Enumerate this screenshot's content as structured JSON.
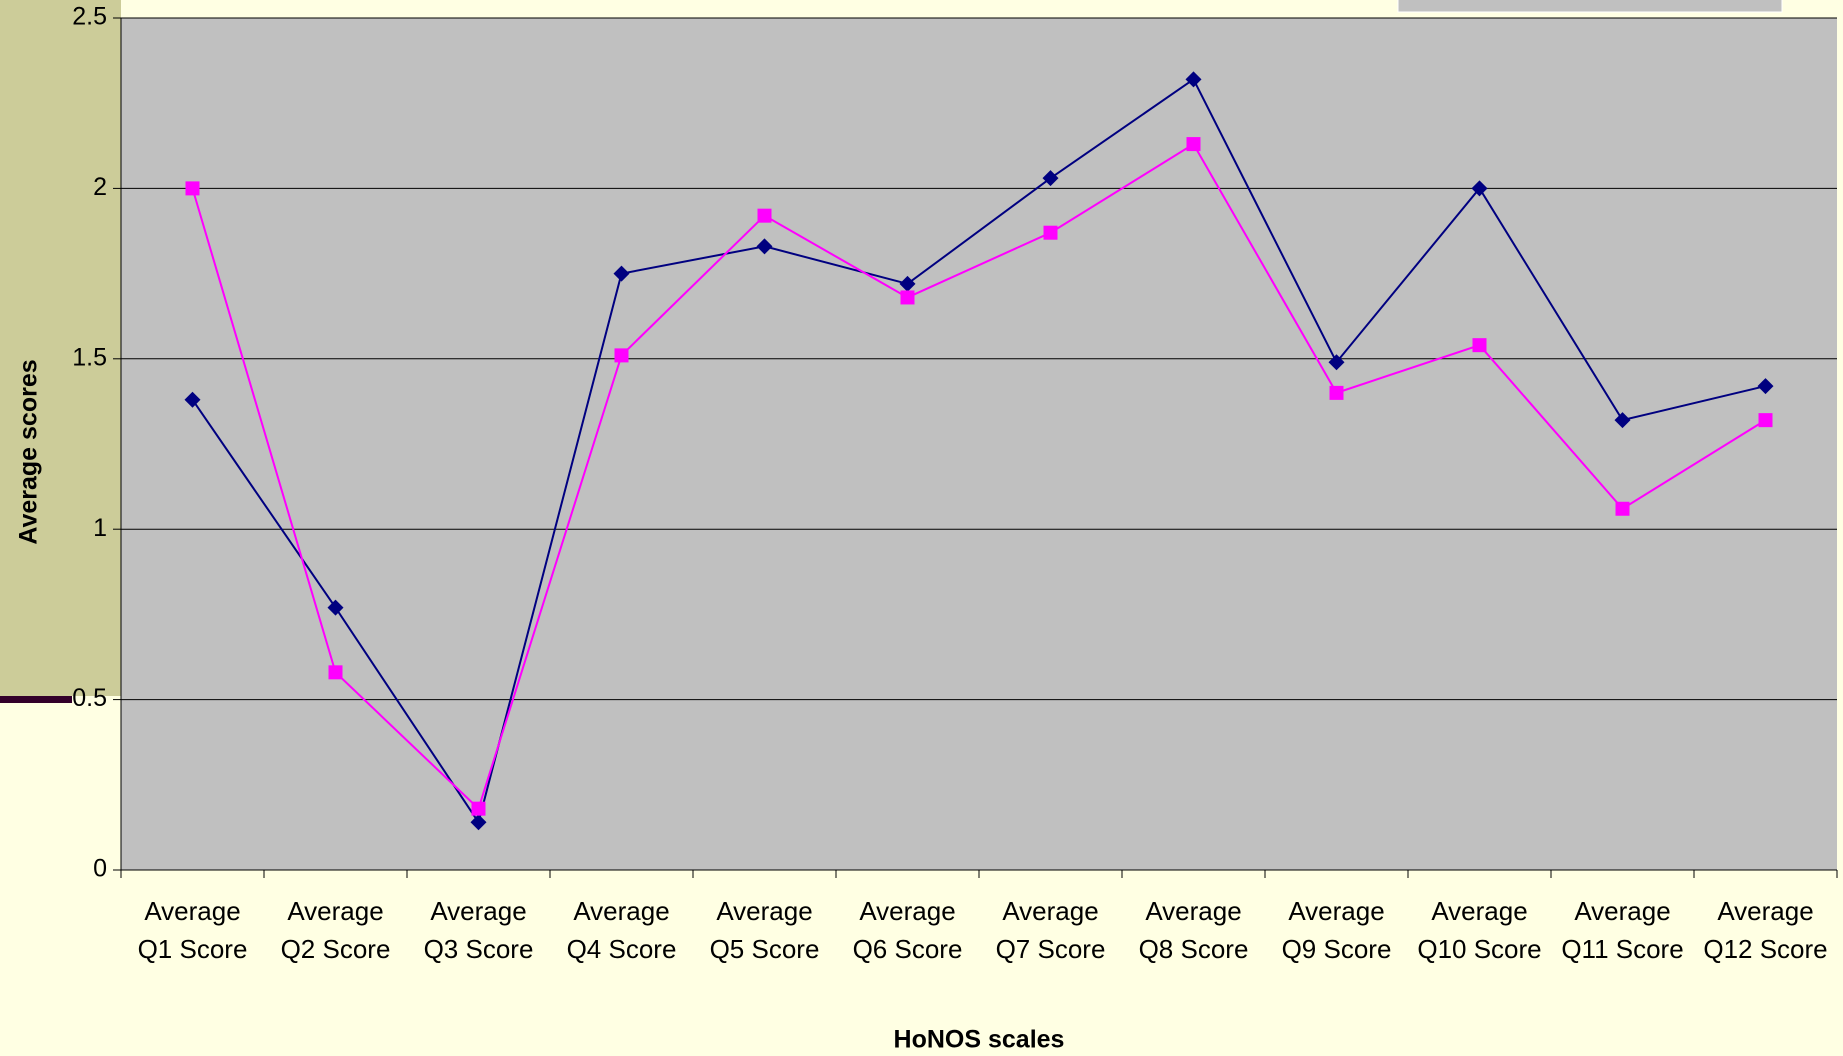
{
  "chart_data": {
    "type": "line",
    "y_label": "Average scores",
    "x_label": "HoNOS scales",
    "categories": [
      "Average Q1 Score",
      "Average Q2 Score",
      "Average Q3 Score",
      "Average Q4 Score",
      "Average Q5 Score",
      "Average Q6 Score",
      "Average Q7 Score",
      "Average Q8 Score",
      "Average Q9 Score",
      "Average Q10 Score",
      "Average Q11 Score",
      "Average Q12 Score"
    ],
    "series": [
      {
        "color": "#000080",
        "marker": "diamond",
        "values": [
          1.38,
          0.77,
          0.14,
          1.75,
          1.83,
          1.72,
          2.03,
          2.32,
          1.49,
          2.0,
          1.32,
          1.42
        ]
      },
      {
        "color": "#ff00ff",
        "marker": "square",
        "values": [
          2.0,
          0.58,
          0.18,
          1.51,
          1.92,
          1.68,
          1.87,
          2.13,
          1.4,
          1.54,
          1.06,
          1.32
        ]
      }
    ],
    "ylim": [
      0,
      2.5
    ],
    "yticks": [
      0,
      0.5,
      1,
      1.5,
      2,
      2.5
    ],
    "grid": true
  }
}
